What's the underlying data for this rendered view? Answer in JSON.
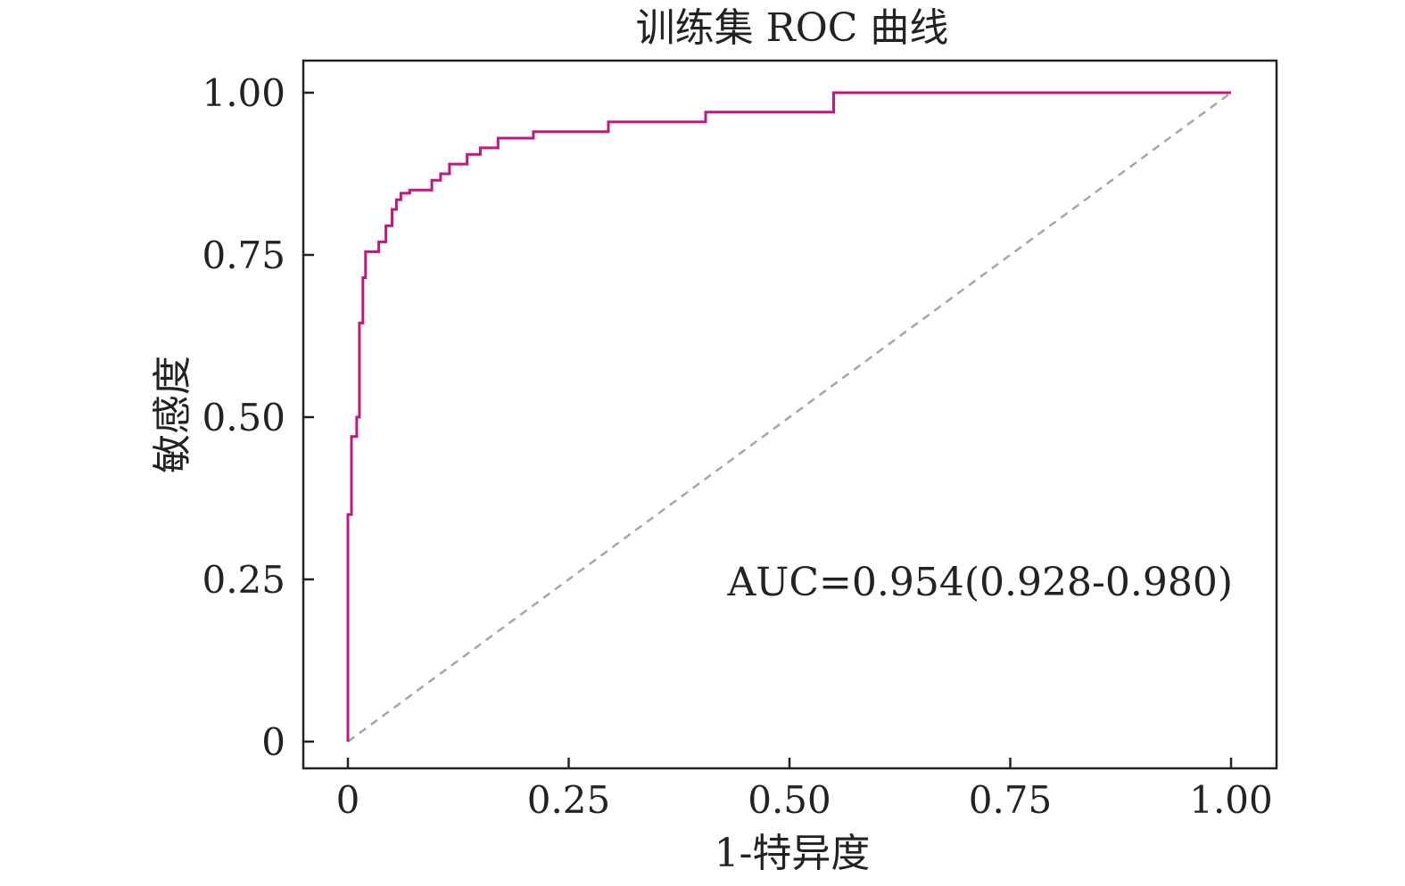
{
  "chart_data": {
    "type": "line",
    "title": "训练集 ROC 曲线",
    "xlabel": "1-特异度",
    "ylabel": "敏感度",
    "xlim": [
      0,
      1
    ],
    "ylim": [
      0,
      1
    ],
    "x_ticks": [
      0,
      0.25,
      0.5,
      0.75,
      1.0
    ],
    "x_tick_labels": [
      "0",
      "0.25",
      "0.50",
      "0.75",
      "1.00"
    ],
    "y_ticks": [
      0,
      0.25,
      0.5,
      0.75,
      1.0
    ],
    "y_tick_labels": [
      "0",
      "0.25",
      "0.50",
      "0.75",
      "1.00"
    ],
    "annotation": "AUC=0.954(0.928-0.980)",
    "grid": false,
    "legend": "none",
    "colors": {
      "roc": "#c2187d",
      "reference": "#a6a6a6",
      "frame": "#222222"
    },
    "series": [
      {
        "style": "step",
        "x": [
          0,
          0,
          0.004,
          0.004,
          0.01,
          0.01,
          0.013,
          0.013,
          0.017,
          0.017,
          0.02,
          0.02,
          0.035,
          0.035,
          0.043,
          0.043,
          0.05,
          0.05,
          0.055,
          0.055,
          0.06,
          0.06,
          0.07,
          0.07,
          0.095,
          0.095,
          0.105,
          0.105,
          0.115,
          0.115,
          0.135,
          0.135,
          0.15,
          0.15,
          0.17,
          0.17,
          0.21,
          0.21,
          0.295,
          0.295,
          0.405,
          0.405,
          0.55,
          0.55,
          1.0
        ],
        "y": [
          0,
          0.35,
          0.35,
          0.47,
          0.47,
          0.5,
          0.5,
          0.645,
          0.645,
          0.715,
          0.715,
          0.755,
          0.755,
          0.77,
          0.77,
          0.795,
          0.795,
          0.82,
          0.82,
          0.835,
          0.835,
          0.845,
          0.845,
          0.85,
          0.85,
          0.865,
          0.865,
          0.875,
          0.875,
          0.89,
          0.89,
          0.905,
          0.905,
          0.915,
          0.915,
          0.93,
          0.93,
          0.94,
          0.94,
          0.955,
          0.955,
          0.97,
          0.97,
          1.0,
          1.0
        ]
      },
      {
        "style": "dashed",
        "x": [
          0,
          1
        ],
        "y": [
          0,
          1
        ]
      }
    ]
  }
}
